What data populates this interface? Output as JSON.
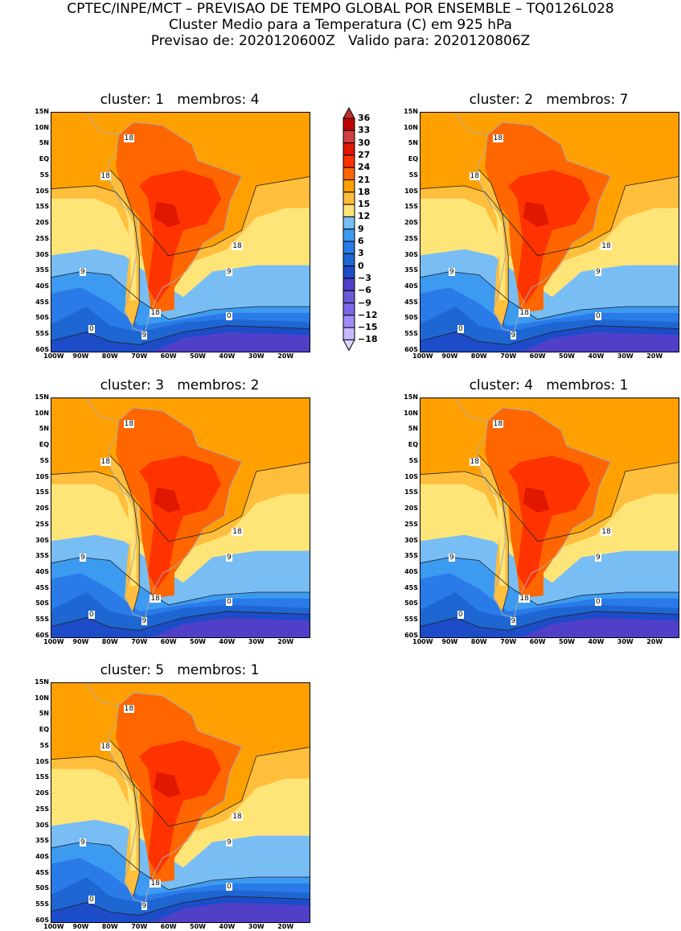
{
  "header": {
    "line1": "CPTEC/INPE/MCT – PREVISAO DE TEMPO GLOBAL POR ENSEMBLE – TQ0126L028",
    "line2": "Cluster Medio para a Temperatura (C) em 925 hPa",
    "line3": "Previsao de: 2020120600Z   Valido para: 2020120806Z"
  },
  "axes": {
    "lat_labels": [
      "15N",
      "10N",
      "5N",
      "EQ",
      "5S",
      "10S",
      "15S",
      "20S",
      "25S",
      "30S",
      "35S",
      "40S",
      "45S",
      "50S",
      "55S",
      "60S"
    ],
    "lon_labels": [
      "100W",
      "90W",
      "80W",
      "70W",
      "60W",
      "50W",
      "40W",
      "30W",
      "20W"
    ]
  },
  "colorbar": {
    "labels": [
      "36",
      "33",
      "30",
      "27",
      "24",
      "21",
      "18",
      "15",
      "12",
      "9",
      "6",
      "3",
      "0",
      "−3",
      "−6",
      "−9",
      "−12",
      "−15",
      "−18"
    ],
    "colors": [
      "#c00000",
      "#d04040",
      "#e01800",
      "#ff3300",
      "#ff6600",
      "#ffa000",
      "#ffbe3c",
      "#ffe478",
      "#78bef5",
      "#3c9af0",
      "#2a7ae8",
      "#1e66d2",
      "#1c4cc8",
      "#5040c8",
      "#6a5ad8",
      "#7a68e8",
      "#a08cff",
      "#c8b8ff"
    ],
    "top_color": "#c03030",
    "bottom_color": "#dcd4ff"
  },
  "panels": [
    {
      "title": "cluster: 1   membros: 4",
      "contours": [
        "18",
        "18",
        "18",
        "9",
        "9",
        "18",
        "0",
        "0",
        "9"
      ]
    },
    {
      "title": "cluster: 2   membros: 7",
      "contours": [
        "18",
        "18",
        "18",
        "9",
        "9",
        "18",
        "0",
        "0",
        "9"
      ]
    },
    {
      "title": "cluster: 3   membros: 2",
      "contours": [
        "18",
        "18",
        "18",
        "9",
        "9",
        "18",
        "0",
        "0",
        "9"
      ]
    },
    {
      "title": "cluster: 4   membros: 1",
      "contours": [
        "18",
        "18",
        "18",
        "9",
        "9",
        "18",
        "0",
        "0",
        "9"
      ]
    },
    {
      "title": "cluster: 5   membros: 1",
      "contours": [
        "18",
        "18",
        "18",
        "9",
        "9",
        "18",
        "0",
        "0",
        "9"
      ]
    }
  ]
}
